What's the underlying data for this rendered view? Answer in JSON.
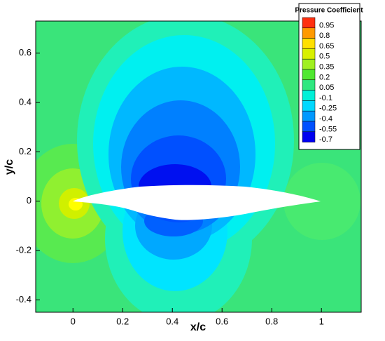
{
  "chart_data": {
    "type": "contour",
    "xlabel": "x/c",
    "ylabel": "y/c",
    "xlim": [
      -0.15,
      1.16
    ],
    "ylim": [
      -0.45,
      0.73
    ],
    "xticks": [
      0,
      0.2,
      0.4,
      0.6,
      0.8,
      1
    ],
    "yticks": [
      -0.4,
      -0.2,
      0,
      0.2,
      0.4,
      0.6
    ],
    "colorbar": {
      "title": "Pressure Coefficient",
      "levels": [
        0.95,
        0.8,
        0.65,
        0.5,
        0.35,
        0.2,
        0.05,
        -0.1,
        -0.25,
        -0.4,
        -0.55,
        -0.7
      ],
      "colors": [
        "#ff3010",
        "#ff9a00",
        "#ffe000",
        "#d8f000",
        "#a0f020",
        "#50e830",
        "#30e880",
        "#00f0d8",
        "#00d8ff",
        "#0098ff",
        "#0050ff",
        "#0000f0"
      ]
    }
  }
}
